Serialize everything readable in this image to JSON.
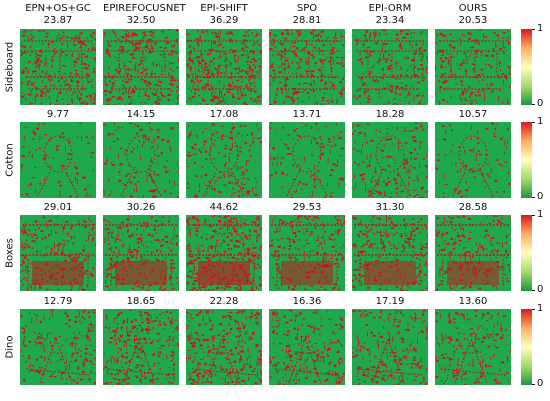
{
  "methods": [
    "EPN+OS+GC",
    "EPIREFOCUSNET",
    "EPI-SHIFT",
    "SPO",
    "EPI-ORM",
    "OURS"
  ],
  "rows": [
    {
      "label": "Sideboard",
      "scores": [
        "23.87",
        "32.50",
        "36.29",
        "28.81",
        "23.34",
        "20.53"
      ]
    },
    {
      "label": "Cotton",
      "scores": [
        "9.77",
        "14.15",
        "17.08",
        "13.71",
        "18.28",
        "10.57"
      ]
    },
    {
      "label": "Boxes",
      "scores": [
        "29.01",
        "30.26",
        "44.62",
        "29.53",
        "31.30",
        "28.58"
      ]
    },
    {
      "label": "Dino",
      "scores": [
        "12.79",
        "18.65",
        "22.28",
        "16.36",
        "17.19",
        "13.60"
      ]
    }
  ],
  "colorbar": {
    "ticks": [
      "1",
      "0"
    ],
    "colors": {
      "low": "#1a9641",
      "mid": "#ffffbf",
      "high": "#d7191c"
    }
  }
}
